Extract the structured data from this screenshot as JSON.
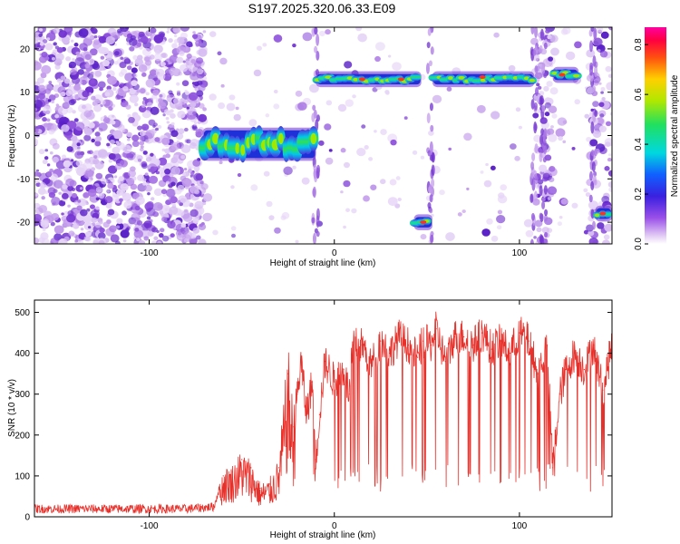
{
  "title": "S197.2025.320.06.33.E09",
  "chart_data": [
    {
      "type": "heatmap",
      "xlabel": "Height of straight line (km)",
      "ylabel": "Frequency (Hz)",
      "xlim": [
        -162,
        150
      ],
      "ylim": [
        -25,
        25
      ],
      "xticks": [
        -100,
        0,
        100
      ],
      "yticks": [
        -20,
        -10,
        0,
        10,
        20
      ],
      "colorbar": {
        "label": "Normalized spectral amplitude",
        "range": [
          0.0,
          0.87
        ],
        "ticks": [
          0.0,
          0.2,
          0.4,
          0.6,
          0.8
        ],
        "colormap": "rainbow (purple-blue-cyan-green-yellow-red-magenta)"
      },
      "features": [
        {
          "name": "low-frequency band",
          "x": [
            -71,
            -10
          ],
          "freq": [
            -5,
            1
          ]
        },
        {
          "name": "upper band left segment",
          "x": [
            -10,
            47
          ],
          "freq": [
            12,
            14
          ]
        },
        {
          "name": "upper band right segment",
          "x": [
            53,
            108
          ],
          "freq": [
            12,
            14
          ]
        },
        {
          "name": "upper band far-right blob",
          "x": [
            118,
            132
          ],
          "freq": [
            13,
            15
          ]
        },
        {
          "name": "low blob near 48 km",
          "x": [
            43,
            53
          ],
          "freq": [
            -21,
            -19
          ]
        },
        {
          "name": "low blob near 145 km",
          "x": [
            141,
            150
          ],
          "freq": [
            -19,
            -17
          ]
        }
      ]
    },
    {
      "type": "line",
      "xlabel": "Height of straight line (km)",
      "ylabel": "SNR (10 * v/v)",
      "xlim": [
        -162,
        150
      ],
      "ylim": [
        0,
        530
      ],
      "xticks": [
        -100,
        0,
        100
      ],
      "yticks": [
        0,
        100,
        200,
        300,
        400,
        500
      ],
      "series": [
        {
          "name": "SNR",
          "color": "#e8302a",
          "x": [
            -162,
            -140,
            -120,
            -100,
            -80,
            -65,
            -60,
            -55,
            -50,
            -45,
            -40,
            -35,
            -30,
            -25,
            -22,
            -20,
            -18,
            -15,
            -12,
            -10,
            -8,
            -5,
            0,
            5,
            8,
            10,
            15,
            20,
            25,
            30,
            35,
            40,
            45,
            48,
            52,
            55,
            60,
            65,
            70,
            75,
            80,
            85,
            90,
            95,
            100,
            105,
            110,
            115,
            118,
            122,
            125,
            130,
            135,
            140,
            145,
            150
          ],
          "y": [
            15,
            15,
            15,
            15,
            15,
            20,
            100,
            110,
            140,
            120,
            70,
            80,
            120,
            350,
            220,
            300,
            380,
            250,
            330,
            140,
            250,
            380,
            330,
            360,
            300,
            420,
            420,
            370,
            430,
            400,
            440,
            420,
            390,
            430,
            420,
            460,
            380,
            440,
            440,
            420,
            450,
            410,
            430,
            400,
            450,
            430,
            350,
            420,
            120,
            300,
            360,
            400,
            360,
            420,
            310,
            420
          ]
        }
      ]
    }
  ]
}
